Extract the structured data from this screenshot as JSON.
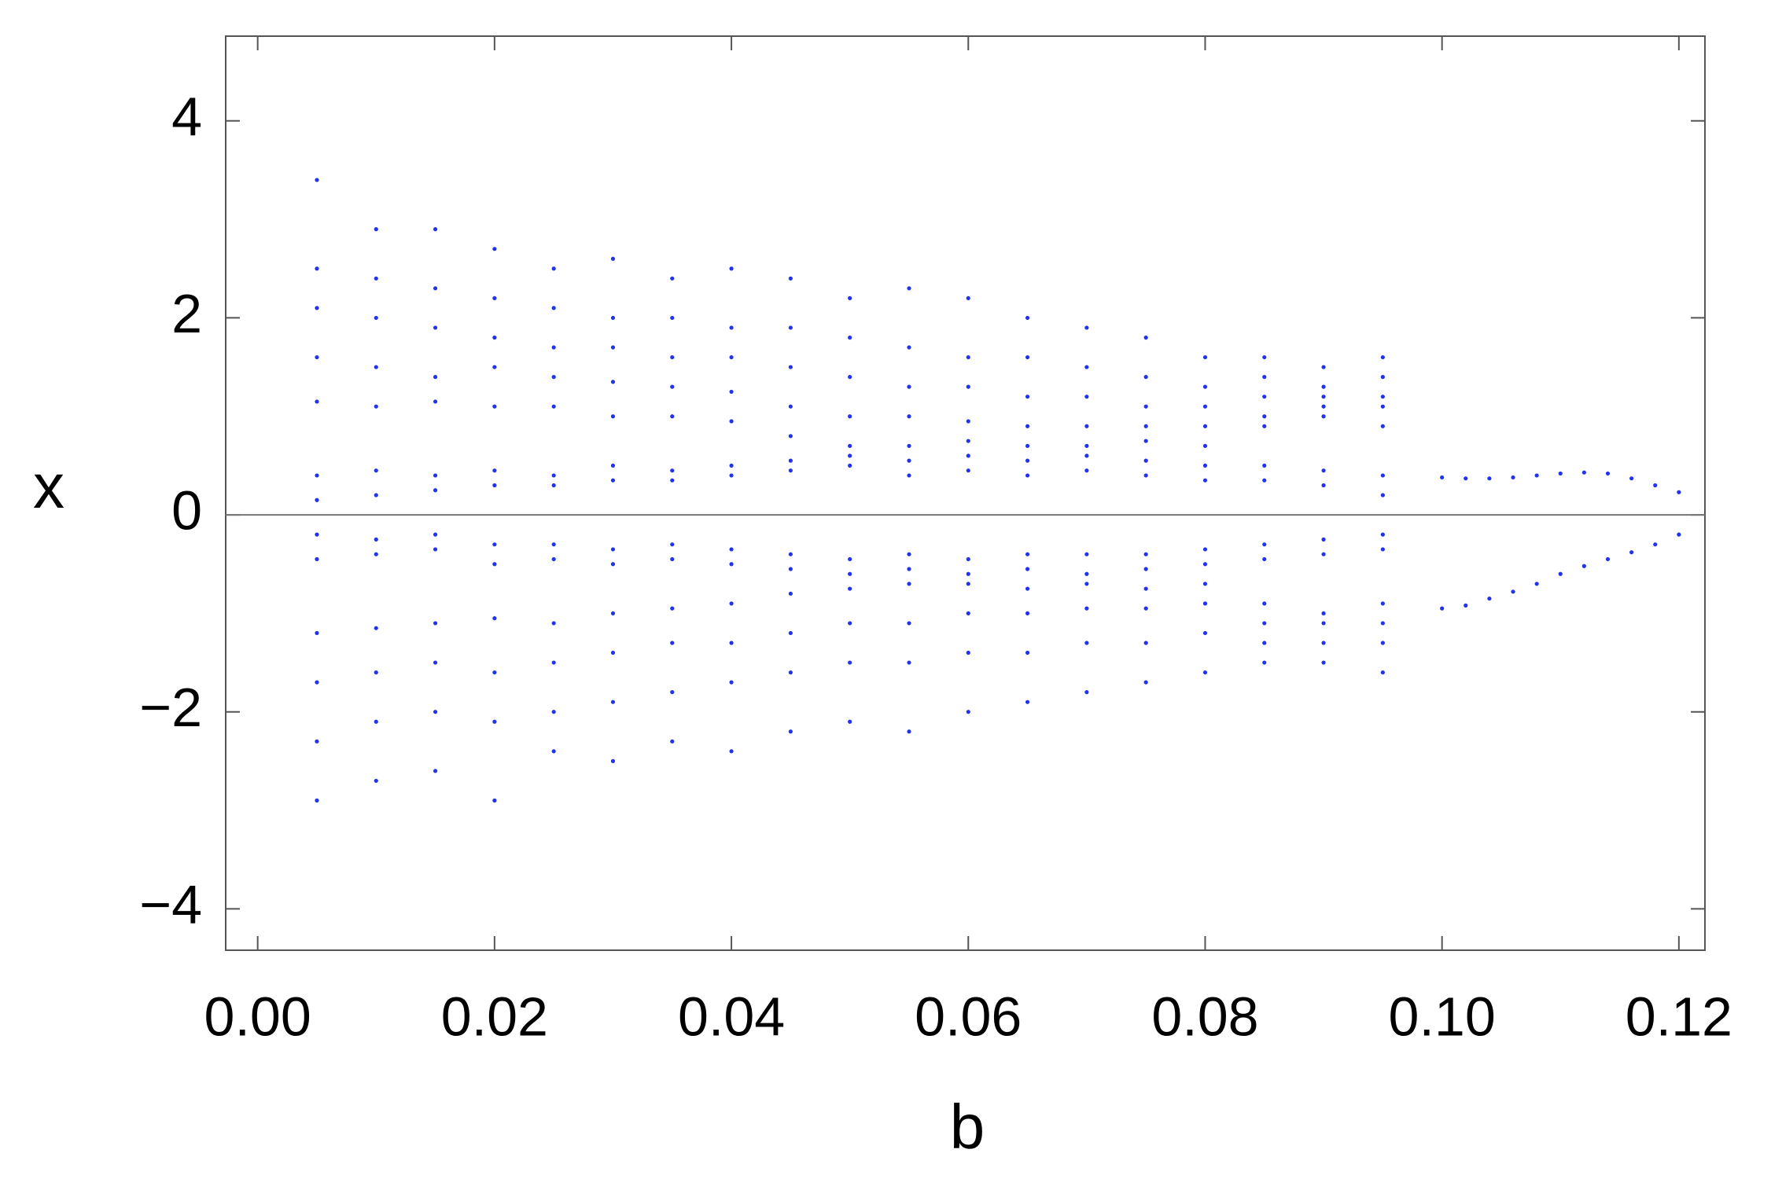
{
  "chart_data": {
    "type": "scatter",
    "xlabel": "b",
    "ylabel": "x",
    "color": "#2233ee",
    "xlim": [
      -0.0027,
      0.1222
    ],
    "ylim": [
      -4.42,
      4.86
    ],
    "xticks": [
      {
        "value": 0,
        "label": "0.00"
      },
      {
        "value": 0.02,
        "label": "0.02"
      },
      {
        "value": 0.04,
        "label": "0.04"
      },
      {
        "value": 0.06,
        "label": "0.06"
      },
      {
        "value": 0.08,
        "label": "0.08"
      },
      {
        "value": 0.1,
        "label": "0.10"
      },
      {
        "value": 0.12,
        "label": "0.12"
      }
    ],
    "yticks": [
      {
        "value": -4,
        "label": "−4"
      },
      {
        "value": -2,
        "label": "−2"
      },
      0,
      2,
      4
    ],
    "x": [
      0.005,
      0.005,
      0.005,
      0.005,
      0.005,
      0.005,
      0.005,
      0.005,
      0.005,
      0.005,
      0.005,
      0.005,
      0.005,
      0.01,
      0.01,
      0.01,
      0.01,
      0.01,
      0.01,
      0.01,
      0.01,
      0.01,
      0.01,
      0.01,
      0.01,
      0.01,
      0.015,
      0.015,
      0.015,
      0.015,
      0.015,
      0.015,
      0.015,
      0.015,
      0.015,
      0.015,
      0.015,
      0.015,
      0.015,
      0.02,
      0.02,
      0.02,
      0.02,
      0.02,
      0.02,
      0.02,
      0.02,
      0.02,
      0.02,
      0.02,
      0.02,
      0.02,
      0.025,
      0.025,
      0.025,
      0.025,
      0.025,
      0.025,
      0.025,
      0.025,
      0.025,
      0.025,
      0.025,
      0.025,
      0.025,
      0.03,
      0.03,
      0.03,
      0.03,
      0.03,
      0.03,
      0.03,
      0.03,
      0.03,
      0.03,
      0.03,
      0.03,
      0.03,
      0.035,
      0.035,
      0.035,
      0.035,
      0.035,
      0.035,
      0.035,
      0.035,
      0.035,
      0.035,
      0.035,
      0.035,
      0.035,
      0.04,
      0.04,
      0.04,
      0.04,
      0.04,
      0.04,
      0.04,
      0.04,
      0.04,
      0.04,
      0.04,
      0.04,
      0.04,
      0.045,
      0.045,
      0.045,
      0.045,
      0.045,
      0.045,
      0.045,
      0.045,
      0.045,
      0.045,
      0.045,
      0.045,
      0.045,
      0.05,
      0.05,
      0.05,
      0.05,
      0.05,
      0.05,
      0.05,
      0.05,
      0.05,
      0.05,
      0.05,
      0.05,
      0.05,
      0.055,
      0.055,
      0.055,
      0.055,
      0.055,
      0.055,
      0.055,
      0.055,
      0.055,
      0.055,
      0.055,
      0.055,
      0.055,
      0.06,
      0.06,
      0.06,
      0.06,
      0.06,
      0.06,
      0.06,
      0.06,
      0.06,
      0.06,
      0.06,
      0.06,
      0.06,
      0.065,
      0.065,
      0.065,
      0.065,
      0.065,
      0.065,
      0.065,
      0.065,
      0.065,
      0.065,
      0.065,
      0.065,
      0.065,
      0.07,
      0.07,
      0.07,
      0.07,
      0.07,
      0.07,
      0.07,
      0.07,
      0.07,
      0.07,
      0.07,
      0.07,
      0.07,
      0.075,
      0.075,
      0.075,
      0.075,
      0.075,
      0.075,
      0.075,
      0.075,
      0.075,
      0.075,
      0.075,
      0.075,
      0.075,
      0.08,
      0.08,
      0.08,
      0.08,
      0.08,
      0.08,
      0.08,
      0.08,
      0.08,
      0.08,
      0.08,
      0.08,
      0.08,
      0.085,
      0.085,
      0.085,
      0.085,
      0.085,
      0.085,
      0.085,
      0.085,
      0.085,
      0.085,
      0.085,
      0.085,
      0.085,
      0.09,
      0.09,
      0.09,
      0.09,
      0.09,
      0.09,
      0.09,
      0.09,
      0.09,
      0.09,
      0.09,
      0.09,
      0.09,
      0.095,
      0.095,
      0.095,
      0.095,
      0.095,
      0.095,
      0.095,
      0.095,
      0.095,
      0.095,
      0.095,
      0.095,
      0.095,
      0.1,
      0.1,
      0.102,
      0.102,
      0.104,
      0.104,
      0.106,
      0.106,
      0.108,
      0.108,
      0.11,
      0.11,
      0.112,
      0.112,
      0.114,
      0.114,
      0.116,
      0.116,
      0.118,
      0.118,
      0.12,
      0.12
    ],
    "values": [
      1.15,
      1.6,
      2.1,
      2.5,
      3.4,
      0.15,
      0.4,
      -0.2,
      -0.45,
      -1.2,
      -1.7,
      -2.3,
      -2.9,
      1.1,
      1.5,
      2.0,
      2.4,
      2.9,
      0.2,
      0.45,
      -0.25,
      -0.4,
      -1.15,
      -1.6,
      -2.1,
      -2.7,
      1.15,
      1.4,
      1.9,
      2.3,
      2.9,
      0.25,
      0.4,
      -0.2,
      -0.35,
      -1.1,
      -1.5,
      -2.0,
      -2.6,
      1.1,
      1.5,
      1.8,
      2.2,
      2.7,
      0.3,
      0.45,
      -0.3,
      -0.5,
      -1.05,
      -1.6,
      -2.1,
      -2.9,
      1.1,
      1.4,
      1.7,
      2.1,
      2.5,
      0.3,
      0.4,
      -0.3,
      -0.45,
      -1.1,
      -1.5,
      -2.0,
      -2.4,
      1.0,
      1.35,
      1.7,
      2.0,
      2.6,
      0.35,
      0.5,
      -0.35,
      -0.5,
      -1.0,
      -1.4,
      -1.9,
      -2.5,
      1.0,
      1.3,
      1.6,
      2.0,
      2.4,
      0.35,
      0.45,
      -0.3,
      -0.45,
      -0.95,
      -1.3,
      -1.8,
      -2.3,
      0.95,
      1.25,
      1.6,
      1.9,
      2.5,
      0.4,
      0.5,
      -0.35,
      -0.5,
      -0.9,
      -1.3,
      -1.7,
      -2.4,
      0.8,
      1.1,
      1.5,
      1.9,
      2.4,
      0.45,
      0.55,
      -0.4,
      -0.55,
      -0.8,
      -1.2,
      -1.6,
      -2.2,
      0.7,
      1.0,
      1.4,
      1.8,
      2.2,
      0.5,
      0.6,
      -0.45,
      -0.6,
      -0.75,
      -1.1,
      -1.5,
      -2.1,
      0.7,
      1.0,
      1.3,
      1.7,
      2.3,
      0.4,
      0.55,
      -0.4,
      -0.55,
      -0.7,
      -1.1,
      -1.5,
      -2.2,
      0.75,
      0.95,
      1.3,
      1.6,
      2.2,
      0.45,
      0.6,
      -0.45,
      -0.6,
      -0.7,
      -1.0,
      -1.4,
      -2.0,
      0.7,
      0.9,
      1.2,
      1.6,
      2.0,
      0.4,
      0.55,
      -0.4,
      -0.55,
      -0.75,
      -1.0,
      -1.4,
      -1.9,
      0.7,
      0.9,
      1.2,
      1.5,
      1.9,
      0.45,
      0.6,
      -0.4,
      -0.6,
      -0.7,
      -0.95,
      -1.3,
      -1.8,
      0.75,
      0.9,
      1.1,
      1.4,
      1.8,
      0.4,
      0.55,
      -0.4,
      -0.55,
      -0.75,
      -0.95,
      -1.3,
      -1.7,
      0.7,
      0.9,
      1.1,
      1.3,
      1.6,
      0.35,
      0.5,
      -0.35,
      -0.5,
      -0.7,
      -0.9,
      -1.2,
      -1.6,
      0.9,
      1.0,
      1.2,
      1.4,
      1.6,
      0.35,
      0.5,
      -0.3,
      -0.45,
      -0.9,
      -1.1,
      -1.3,
      -1.5,
      1.0,
      1.1,
      1.2,
      1.3,
      1.5,
      0.3,
      0.45,
      -0.25,
      -0.4,
      -1.0,
      -1.1,
      -1.3,
      -1.5,
      0.9,
      1.1,
      1.2,
      1.4,
      1.6,
      0.2,
      0.4,
      -0.2,
      -0.35,
      -0.9,
      -1.1,
      -1.3,
      -1.6,
      0.38,
      -0.95,
      0.37,
      -0.92,
      0.37,
      -0.85,
      0.38,
      -0.78,
      0.4,
      -0.7,
      0.42,
      -0.6,
      0.43,
      -0.52,
      0.42,
      -0.45,
      0.37,
      -0.38,
      0.3,
      -0.3,
      0.23,
      -0.2
    ]
  }
}
